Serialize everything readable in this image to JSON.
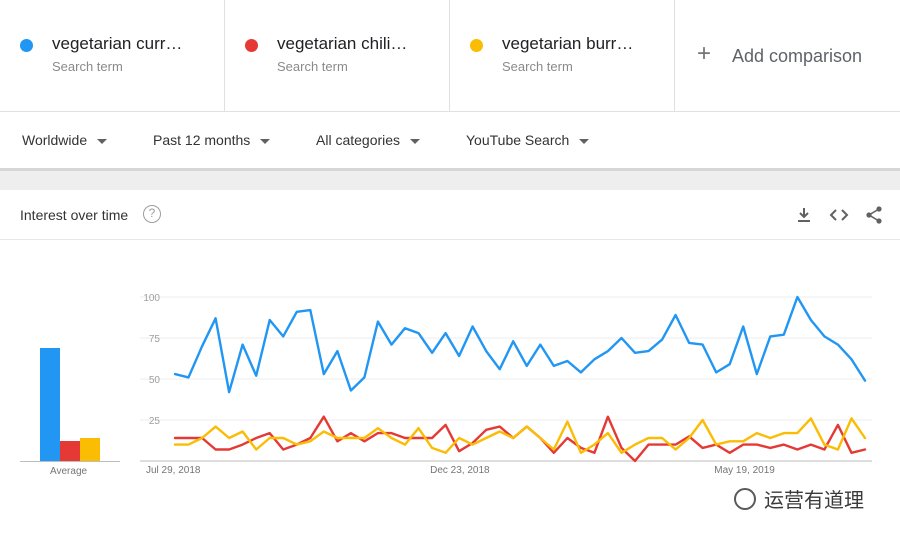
{
  "search_terms": [
    {
      "name": "vegetarian curr…",
      "subtitle": "Search term",
      "color": "#2196f3"
    },
    {
      "name": "vegetarian chili…",
      "subtitle": "Search term",
      "color": "#e53935"
    },
    {
      "name": "vegetarian burr…",
      "subtitle": "Search term",
      "color": "#fbbc04"
    }
  ],
  "add_comparison": {
    "label": "Add comparison",
    "icon": "plus-icon"
  },
  "filters": {
    "region": "Worldwide",
    "time_range": "Past 12 months",
    "category": "All categories",
    "source": "YouTube Search"
  },
  "card": {
    "title": "Interest over time",
    "help_glyph": "?",
    "tools": [
      "download-icon",
      "embed-icon",
      "share-icon"
    ]
  },
  "average_label": "Average",
  "watermark": "运营有道理",
  "chart_data": {
    "type": "line",
    "ylim": [
      0,
      100
    ],
    "yticks": [
      25,
      50,
      75,
      100
    ],
    "grid": true,
    "x_tick_labels": [
      "Jul 29, 2018",
      "Dec 23, 2018",
      "May 19, 2019"
    ],
    "x_tick_index": [
      0,
      21,
      42
    ],
    "averages": [
      69,
      12,
      14
    ],
    "series": [
      {
        "color": "#2196f3",
        "values": [
          53,
          51,
          70,
          87,
          42,
          71,
          52,
          86,
          76,
          91,
          92,
          53,
          67,
          43,
          51,
          85,
          71,
          81,
          78,
          66,
          78,
          64,
          82,
          67,
          56,
          73,
          58,
          71,
          58,
          61,
          54,
          62,
          67,
          75,
          66,
          67,
          74,
          89,
          72,
          71,
          54,
          59,
          82,
          53,
          76,
          77,
          100,
          86,
          76,
          71,
          62,
          49
        ]
      },
      {
        "color": "#e53935",
        "values": [
          14,
          14,
          14,
          7,
          7,
          10,
          14,
          17,
          7,
          10,
          14,
          27,
          12,
          17,
          12,
          17,
          17,
          14,
          14,
          14,
          22,
          6,
          11,
          19,
          21,
          14,
          21,
          14,
          5,
          14,
          8,
          5,
          27,
          8,
          0,
          10,
          10,
          10,
          15,
          8,
          10,
          5,
          10,
          10,
          8,
          10,
          7,
          10,
          7,
          22,
          5,
          7
        ]
      },
      {
        "color": "#fbbc04",
        "values": [
          10,
          10,
          14,
          21,
          14,
          18,
          7,
          14,
          14,
          10,
          12,
          18,
          14,
          14,
          14,
          20,
          14,
          10,
          20,
          8,
          5,
          14,
          10,
          14,
          18,
          14,
          21,
          14,
          7,
          24,
          5,
          10,
          17,
          5,
          10,
          14,
          14,
          7,
          14,
          25,
          10,
          12,
          12,
          17,
          14,
          17,
          17,
          26,
          10,
          7,
          26,
          14
        ]
      }
    ]
  }
}
